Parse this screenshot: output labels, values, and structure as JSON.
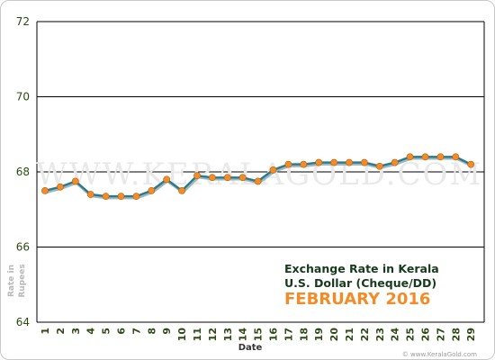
{
  "watermark": "WWW.KERALAGOLD.COM",
  "footnote": "© www.KeralaGold.com",
  "chart_data": {
    "type": "line",
    "title_lines": [
      "Exchange Rate in Kerala",
      "U.S. Dollar (Cheque/DD)",
      "FEBRUARY 2016"
    ],
    "xlabel": "Date",
    "ylabel": "Rate in Rupees",
    "ylim": [
      64,
      72
    ],
    "yticks": [
      "64",
      "66",
      "68",
      "70",
      "72"
    ],
    "grid": "horizontal",
    "line_color": "#2a7a8c",
    "marker_color": "#f28c28",
    "x": [
      1,
      2,
      3,
      4,
      5,
      6,
      7,
      8,
      9,
      10,
      11,
      12,
      13,
      14,
      15,
      16,
      17,
      18,
      19,
      20,
      21,
      22,
      23,
      24,
      25,
      26,
      27,
      28,
      29
    ],
    "xtick_labels": [
      "1",
      "2",
      "3",
      "4",
      "5",
      "6",
      "7",
      "8",
      "9",
      "10",
      "11",
      "12",
      "13",
      "14",
      "15",
      "16",
      "17",
      "18",
      "19",
      "20",
      "21",
      "22",
      "23",
      "24",
      "25",
      "26",
      "27",
      "28",
      "29"
    ],
    "values": [
      67.5,
      67.6,
      67.75,
      67.4,
      67.35,
      67.35,
      67.35,
      67.5,
      67.8,
      67.5,
      67.9,
      67.85,
      67.85,
      67.85,
      67.75,
      68.05,
      68.2,
      68.2,
      68.25,
      68.25,
      68.25,
      68.25,
      68.15,
      68.25,
      68.4,
      68.4,
      68.4,
      68.4,
      68.2
    ]
  }
}
